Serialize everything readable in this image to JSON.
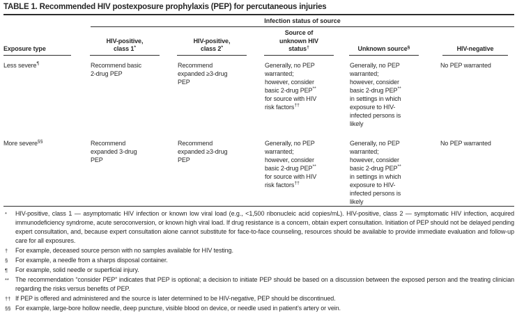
{
  "title": "TABLE 1. Recommended HIV postexposure prophylaxis (PEP) for percutaneous injuries",
  "table": {
    "spanner": "Infection status of source",
    "headers": {
      "exposure": {
        "text": "Exposure type",
        "sup": ""
      },
      "hiv1": {
        "text": "HIV-positive,\nclass 1",
        "sup": "*"
      },
      "hiv2": {
        "text": "HIV-positive,\nclass 2",
        "sup": "*"
      },
      "unknown_status": {
        "text": "Source of\nunknown HIV\nstatus",
        "sup": "†"
      },
      "unknown_source": {
        "text": "Unknown source",
        "sup": "§"
      },
      "negative": {
        "text": "HIV-negative",
        "sup": ""
      }
    },
    "rows": [
      {
        "exposure": {
          "text": "Less severe",
          "sup": "¶"
        },
        "hiv1": "Recommend basic\n2-drug PEP",
        "hiv2": "Recommend\nexpanded ≥3-drug\nPEP",
        "unknown_status": {
          "p1": "Generally, no PEP\nwarranted;\nhowever, consider\nbasic 2-drug PEP",
          "s1": "**",
          "p2": "\nfor source with HIV\nrisk factors",
          "s2": "††"
        },
        "unknown_source": {
          "p1": "Generally, no PEP\nwarranted;\nhowever, consider\nbasic 2-drug PEP",
          "s1": "**",
          "p2": "\nin settings in which\nexposure to HIV-\ninfected persons is\nlikely",
          "s2": ""
        },
        "negative": "No PEP warranted"
      },
      {
        "exposure": {
          "text": "More severe",
          "sup": "§§"
        },
        "hiv1": "Recommend\nexpanded 3-drug\nPEP",
        "hiv2": "Recommend\nexpanded ≥3-drug\nPEP",
        "unknown_status": {
          "p1": "Generally, no PEP\nwarranted;\nhowever, consider\nbasic 2-drug PEP",
          "s1": "**",
          "p2": "\nfor source with HIV\nrisk factors",
          "s2": "††"
        },
        "unknown_source": {
          "p1": "Generally, no PEP\nwarranted;\nhowever, consider\nbasic 2-drug PEP",
          "s1": "**",
          "p2": "\nin settings in which\nexposure to HIV-\ninfected persons is\nlikely",
          "s2": ""
        },
        "negative": "No PEP warranted"
      }
    ]
  },
  "footnotes": [
    {
      "marker": "*",
      "text": "HIV-positive, class 1 — asymptomatic HIV infection or known low viral load (e.g., <1,500 ribonucleic acid copies/mL). HIV-positive, class 2 — symptomatic HIV infection, acquired immunodeficiency syndrome, acute seroconversion, or known high viral load. If drug resistance is a concern, obtain expert consultation. Initiation of PEP should not be delayed pending expert consultation, and, because expert consultation alone cannot substitute for face-to-face counseling, resources should be available to provide immediate evaluation and follow-up care for all exposures."
    },
    {
      "marker": "†",
      "text": "For example, deceased source person with no samples available for HIV testing."
    },
    {
      "marker": "§",
      "text": "For example, a needle from a sharps disposal container."
    },
    {
      "marker": "¶",
      "text": "For example, solid needle or superficial injury."
    },
    {
      "marker": "**",
      "text": "The recommendation “consider PEP” indicates that PEP is optional; a decision to initiate PEP should be based on a discussion between the exposed person and the treating clinician regarding the risks versus benefits of PEP."
    },
    {
      "marker": "††",
      "text": "If PEP is offered and administered and the source is later determined to be HIV-negative, PEP should be discontinued."
    },
    {
      "marker": "§§",
      "text": "For example, large-bore hollow needle, deep puncture, visible blood on device, or needle used in patient’s artery or vein."
    }
  ]
}
